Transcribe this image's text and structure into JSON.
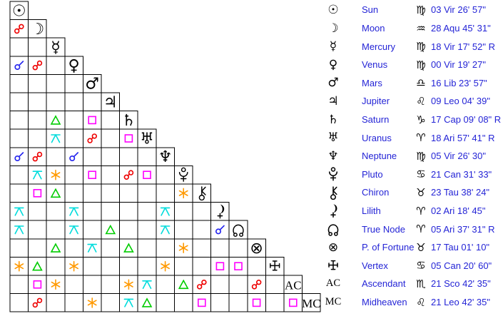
{
  "colors": {
    "background": "#ffffff",
    "grid_line": "#000000",
    "glyph_black": "#000000",
    "text_blue": "#2424d6",
    "aspect": {
      "conjunction": "#2222ee",
      "opposition": "#ee0000",
      "trine": "#00cc00",
      "square": "#ff00ff",
      "sextile": "#ff9900",
      "quincunx": "#00dcdc"
    }
  },
  "aspect_types": {
    "conjunction": {
      "symbol": "☌"
    },
    "opposition": {
      "symbol": "☍"
    },
    "trine": {
      "symbol": "△"
    },
    "square": {
      "symbol": "□"
    },
    "sextile": {
      "symbol": "✶"
    },
    "quincunx": {
      "symbol": "⚻"
    }
  },
  "planets": [
    {
      "id": "sun",
      "name": "Sun",
      "glyph": "☉",
      "sign": "Vir",
      "sign_glyph": "♍",
      "position": "03 Vir 26' 57\""
    },
    {
      "id": "moon",
      "name": "Moon",
      "glyph": "☽",
      "sign": "Aqu",
      "sign_glyph": "♒",
      "position": "28 Aqu 45' 31\""
    },
    {
      "id": "mercury",
      "name": "Mercury",
      "glyph": "☿",
      "sign": "Vir",
      "sign_glyph": "♍",
      "position": "18 Vir 17' 52\" R",
      "retrograde": true
    },
    {
      "id": "venus",
      "name": "Venus",
      "glyph": "♀",
      "sign": "Vir",
      "sign_glyph": "♍",
      "position": "00 Vir 19' 27\""
    },
    {
      "id": "mars",
      "name": "Mars",
      "glyph": "♂",
      "sign": "Lib",
      "sign_glyph": "♎",
      "position": "16 Lib 23' 57\""
    },
    {
      "id": "jupiter",
      "name": "Jupiter",
      "glyph": "♃",
      "sign": "Leo",
      "sign_glyph": "♌",
      "position": "09 Leo 04' 39\""
    },
    {
      "id": "saturn",
      "name": "Saturn",
      "glyph": "♄",
      "sign": "Cap",
      "sign_glyph": "♑",
      "position": "17 Cap 09' 08\" R",
      "retrograde": true
    },
    {
      "id": "uranus",
      "name": "Uranus",
      "glyph": "♅",
      "sign": "Ari",
      "sign_glyph": "♈",
      "position": "18 Ari 57' 41\" R",
      "retrograde": true
    },
    {
      "id": "neptune",
      "name": "Neptune",
      "glyph": "♆",
      "sign": "Vir",
      "sign_glyph": "♍",
      "position": "05 Vir 26' 30\""
    },
    {
      "id": "pluto",
      "name": "Pluto",
      "glyph": "custom",
      "sign": "Can",
      "sign_glyph": "♋",
      "position": "21 Can 31' 33\""
    },
    {
      "id": "chiron",
      "name": "Chiron",
      "glyph": "custom",
      "sign": "Tau",
      "sign_glyph": "♉",
      "position": "23 Tau 38' 24\""
    },
    {
      "id": "lilith",
      "name": "Lilith",
      "glyph": "custom",
      "sign": "Ari",
      "sign_glyph": "♈",
      "position": "02 Ari 18' 45\""
    },
    {
      "id": "truenode",
      "name": "True Node",
      "glyph": "custom",
      "sign": "Ari",
      "sign_glyph": "♈",
      "position": "05 Ari 37' 31\" R",
      "retrograde": true
    },
    {
      "id": "fortune",
      "name": "P. of Fortune",
      "glyph": "⊗",
      "sign": "Tau",
      "sign_glyph": "♉",
      "position": "17 Tau 01' 10\""
    },
    {
      "id": "vertex",
      "name": "Vertex",
      "glyph": "custom",
      "sign": "Can",
      "sign_glyph": "♋",
      "position": "05 Can 20' 60\""
    },
    {
      "id": "ac",
      "name": "Ascendant",
      "glyph": "AC",
      "sign": "Sco",
      "sign_glyph": "♏",
      "position": "21 Sco 42' 35\""
    },
    {
      "id": "mc",
      "name": "Midheaven",
      "glyph": "MC",
      "sign": "Leo",
      "sign_glyph": "♌",
      "position": "21 Leo 42' 35\""
    }
  ],
  "aspects": [
    {
      "p1": "moon",
      "p2": "sun",
      "type": "opposition"
    },
    {
      "p1": "venus",
      "p2": "sun",
      "type": "conjunction"
    },
    {
      "p1": "venus",
      "p2": "moon",
      "type": "opposition"
    },
    {
      "p1": "saturn",
      "p2": "mercury",
      "type": "trine"
    },
    {
      "p1": "saturn",
      "p2": "mars",
      "type": "square"
    },
    {
      "p1": "uranus",
      "p2": "mercury",
      "type": "quincunx"
    },
    {
      "p1": "uranus",
      "p2": "mars",
      "type": "opposition"
    },
    {
      "p1": "uranus",
      "p2": "saturn",
      "type": "square"
    },
    {
      "p1": "neptune",
      "p2": "sun",
      "type": "conjunction"
    },
    {
      "p1": "neptune",
      "p2": "moon",
      "type": "opposition"
    },
    {
      "p1": "neptune",
      "p2": "venus",
      "type": "conjunction"
    },
    {
      "p1": "pluto",
      "p2": "moon",
      "type": "quincunx"
    },
    {
      "p1": "pluto",
      "p2": "mercury",
      "type": "sextile"
    },
    {
      "p1": "pluto",
      "p2": "mars",
      "type": "square"
    },
    {
      "p1": "pluto",
      "p2": "saturn",
      "type": "opposition"
    },
    {
      "p1": "pluto",
      "p2": "uranus",
      "type": "square"
    },
    {
      "p1": "chiron",
      "p2": "moon",
      "type": "square"
    },
    {
      "p1": "chiron",
      "p2": "mercury",
      "type": "trine"
    },
    {
      "p1": "chiron",
      "p2": "pluto",
      "type": "sextile"
    },
    {
      "p1": "lilith",
      "p2": "sun",
      "type": "quincunx"
    },
    {
      "p1": "lilith",
      "p2": "venus",
      "type": "quincunx"
    },
    {
      "p1": "lilith",
      "p2": "neptune",
      "type": "quincunx"
    },
    {
      "p1": "truenode",
      "p2": "sun",
      "type": "quincunx"
    },
    {
      "p1": "truenode",
      "p2": "venus",
      "type": "quincunx"
    },
    {
      "p1": "truenode",
      "p2": "jupiter",
      "type": "trine"
    },
    {
      "p1": "truenode",
      "p2": "neptune",
      "type": "quincunx"
    },
    {
      "p1": "truenode",
      "p2": "lilith",
      "type": "conjunction"
    },
    {
      "p1": "fortune",
      "p2": "mercury",
      "type": "trine"
    },
    {
      "p1": "fortune",
      "p2": "mars",
      "type": "quincunx"
    },
    {
      "p1": "fortune",
      "p2": "saturn",
      "type": "trine"
    },
    {
      "p1": "fortune",
      "p2": "pluto",
      "type": "sextile"
    },
    {
      "p1": "vertex",
      "p2": "sun",
      "type": "sextile"
    },
    {
      "p1": "vertex",
      "p2": "moon",
      "type": "trine"
    },
    {
      "p1": "vertex",
      "p2": "venus",
      "type": "sextile"
    },
    {
      "p1": "vertex",
      "p2": "neptune",
      "type": "sextile"
    },
    {
      "p1": "vertex",
      "p2": "lilith",
      "type": "square"
    },
    {
      "p1": "vertex",
      "p2": "truenode",
      "type": "square"
    },
    {
      "p1": "ac",
      "p2": "moon",
      "type": "square"
    },
    {
      "p1": "ac",
      "p2": "mercury",
      "type": "sextile"
    },
    {
      "p1": "ac",
      "p2": "saturn",
      "type": "sextile"
    },
    {
      "p1": "ac",
      "p2": "uranus",
      "type": "quincunx"
    },
    {
      "p1": "ac",
      "p2": "pluto",
      "type": "trine"
    },
    {
      "p1": "ac",
      "p2": "chiron",
      "type": "opposition"
    },
    {
      "p1": "ac",
      "p2": "fortune",
      "type": "opposition"
    },
    {
      "p1": "mc",
      "p2": "moon",
      "type": "opposition"
    },
    {
      "p1": "mc",
      "p2": "mars",
      "type": "sextile"
    },
    {
      "p1": "mc",
      "p2": "saturn",
      "type": "quincunx"
    },
    {
      "p1": "mc",
      "p2": "uranus",
      "type": "trine"
    },
    {
      "p1": "mc",
      "p2": "chiron",
      "type": "square"
    },
    {
      "p1": "mc",
      "p2": "fortune",
      "type": "square"
    },
    {
      "p1": "mc",
      "p2": "ac",
      "type": "square"
    }
  ]
}
